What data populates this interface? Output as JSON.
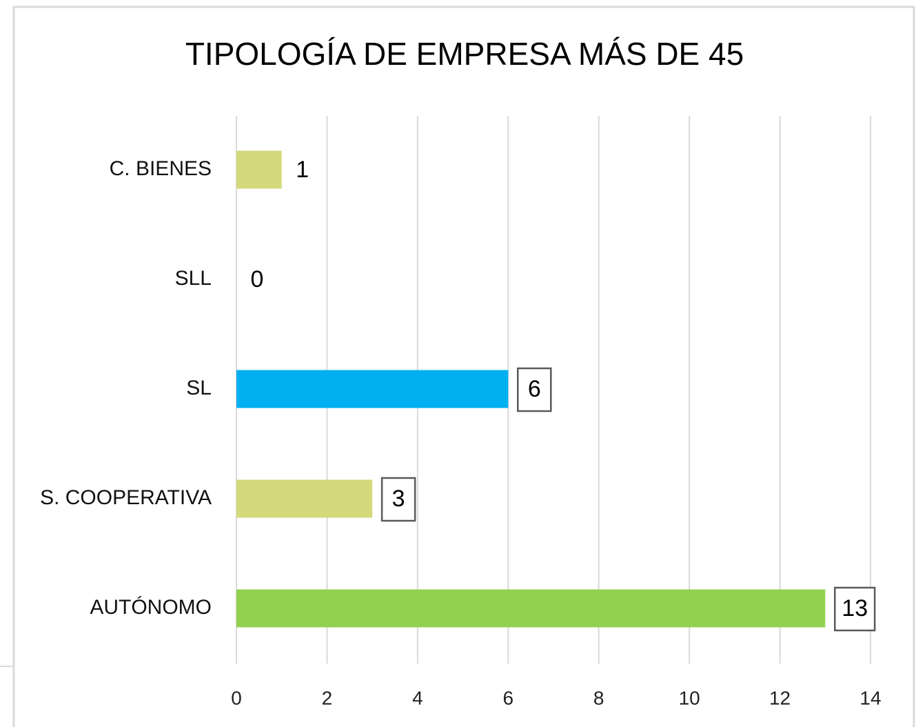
{
  "chart_data": {
    "type": "hbar",
    "title": "TIPOLOGÍA DE EMPRESA MÁS DE 45",
    "categories": [
      "C. BIENES",
      "SLL",
      "SL",
      "S. COOPERATIVA",
      "AUTÓNOMO"
    ],
    "values": [
      1,
      0,
      6,
      3,
      13
    ],
    "colors": [
      "#d4d97c",
      "#d4d97c",
      "#00b0f0",
      "#d4d97c",
      "#92d050"
    ],
    "value_label_boxed": [
      false,
      false,
      true,
      true,
      true
    ],
    "xlim": [
      0,
      14
    ],
    "xticks": [
      0,
      2,
      4,
      6,
      8,
      10,
      12,
      14
    ],
    "grid": true
  }
}
